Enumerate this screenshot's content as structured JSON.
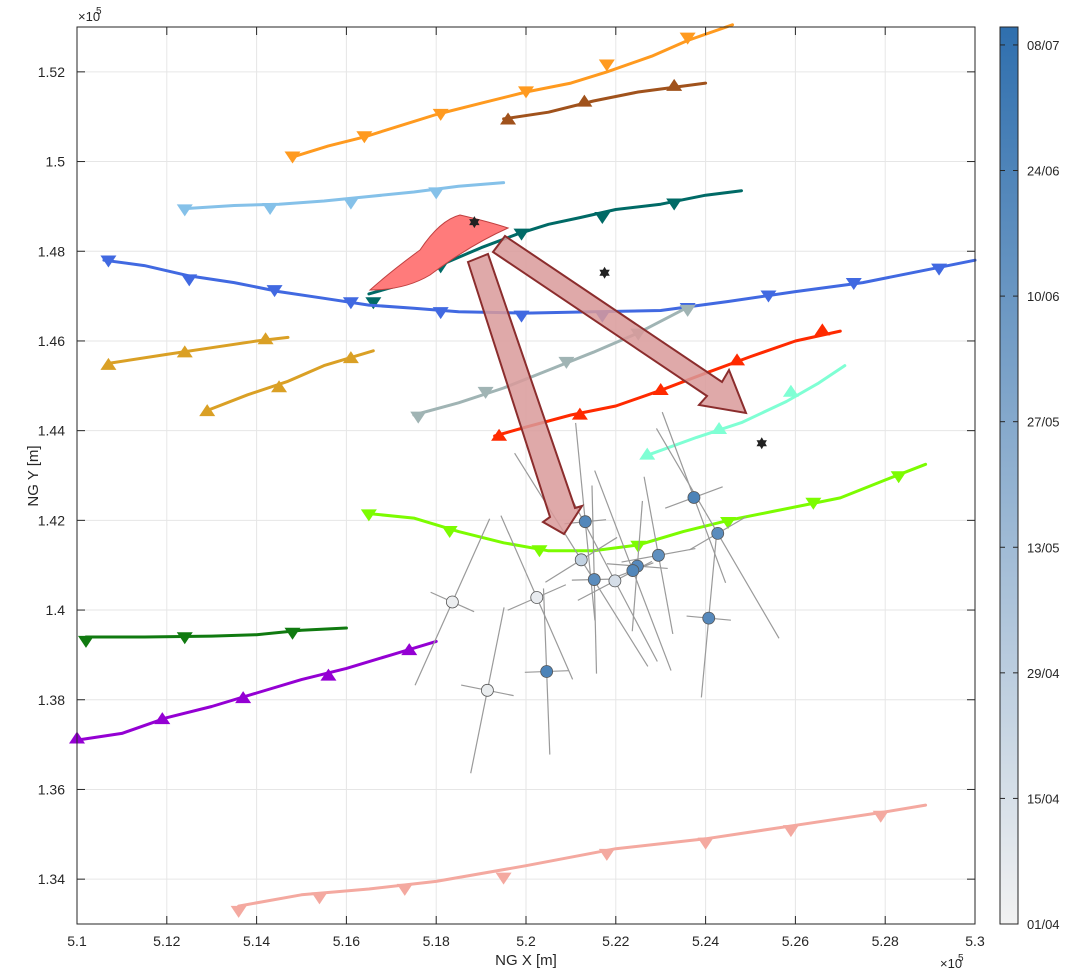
{
  "chart_data": {
    "type": "line",
    "xlabel": "NG X [m]",
    "ylabel": "NG Y [m]",
    "x_exponent_label": "×10",
    "y_exponent_label": "×10",
    "exponent_power": "5",
    "xlim": [
      5.1,
      5.3
    ],
    "ylim": [
      1.33,
      1.53
    ],
    "xticks": [
      "5.1",
      "5.12",
      "5.14",
      "5.16",
      "5.18",
      "5.2",
      "5.22",
      "5.24",
      "5.26",
      "5.28",
      "5.3"
    ],
    "yticks": [
      "1.34",
      "1.36",
      "1.38",
      "1.4",
      "1.42",
      "1.44",
      "1.46",
      "1.48",
      "1.5",
      "1.52"
    ],
    "grid": true,
    "series": [
      {
        "color": "#ff9a1f",
        "marker": "down",
        "points": [
          [
            5.148,
            1.501
          ],
          [
            5.156,
            1.5035
          ],
          [
            5.164,
            1.5055
          ],
          [
            5.172,
            1.508
          ],
          [
            5.18,
            1.5105
          ],
          [
            5.19,
            1.513
          ],
          [
            5.2,
            1.5155
          ],
          [
            5.21,
            1.5175
          ],
          [
            5.218,
            1.52
          ],
          [
            5.228,
            1.5235
          ],
          [
            5.236,
            1.527
          ],
          [
            5.246,
            1.5305
          ]
        ],
        "markers": [
          [
            5.148,
            1.501
          ],
          [
            5.164,
            1.5055
          ],
          [
            5.181,
            1.5105
          ],
          [
            5.2,
            1.5155
          ],
          [
            5.218,
            1.5215
          ],
          [
            5.236,
            1.5275
          ]
        ]
      },
      {
        "color": "#a0521c",
        "marker": "up",
        "points": [
          [
            5.195,
            1.5095
          ],
          [
            5.205,
            1.511
          ],
          [
            5.215,
            1.5135
          ],
          [
            5.225,
            1.5155
          ],
          [
            5.24,
            1.5175
          ]
        ],
        "markers": [
          [
            5.196,
            1.5095
          ],
          [
            5.213,
            1.5135
          ],
          [
            5.233,
            1.517
          ]
        ]
      },
      {
        "color": "#85c1e9",
        "marker": "down",
        "points": [
          [
            5.124,
            1.4895
          ],
          [
            5.135,
            1.4902
          ],
          [
            5.145,
            1.4905
          ],
          [
            5.155,
            1.4912
          ],
          [
            5.165,
            1.4922
          ],
          [
            5.175,
            1.4932
          ],
          [
            5.185,
            1.4945
          ],
          [
            5.195,
            1.4953
          ]
        ],
        "markers": [
          [
            5.124,
            1.4892
          ],
          [
            5.143,
            1.4895
          ],
          [
            5.161,
            1.4907
          ],
          [
            5.18,
            1.493
          ]
        ]
      },
      {
        "color": "#006a66",
        "marker": "down",
        "points": [
          [
            5.165,
            1.4705
          ],
          [
            5.172,
            1.4725
          ],
          [
            5.18,
            1.4765
          ],
          [
            5.19,
            1.4808
          ],
          [
            5.198,
            1.4838
          ],
          [
            5.205,
            1.486
          ],
          [
            5.212,
            1.4875
          ],
          [
            5.22,
            1.4893
          ],
          [
            5.23,
            1.4905
          ],
          [
            5.24,
            1.4925
          ],
          [
            5.248,
            1.4935
          ]
        ],
        "markers": [
          [
            5.166,
            1.4685
          ],
          [
            5.181,
            1.4765
          ],
          [
            5.199,
            1.4838
          ],
          [
            5.217,
            1.4875
          ],
          [
            5.233,
            1.4905
          ]
        ]
      },
      {
        "color": "#4169e1",
        "marker": "down",
        "points": [
          [
            5.106,
            1.478
          ],
          [
            5.115,
            1.4768
          ],
          [
            5.125,
            1.4745
          ],
          [
            5.135,
            1.473
          ],
          [
            5.145,
            1.471
          ],
          [
            5.155,
            1.4695
          ],
          [
            5.165,
            1.468
          ],
          [
            5.175,
            1.4673
          ],
          [
            5.185,
            1.4665
          ],
          [
            5.2,
            1.4662
          ],
          [
            5.215,
            1.4665
          ],
          [
            5.23,
            1.4668
          ],
          [
            5.245,
            1.4688
          ],
          [
            5.26,
            1.471
          ],
          [
            5.275,
            1.473
          ],
          [
            5.29,
            1.476
          ],
          [
            5.3,
            1.478
          ]
        ],
        "markers": [
          [
            5.107,
            1.4778
          ],
          [
            5.125,
            1.4736
          ],
          [
            5.144,
            1.4712
          ],
          [
            5.161,
            1.4685
          ],
          [
            5.181,
            1.4663
          ],
          [
            5.199,
            1.4655
          ],
          [
            5.217,
            1.4655
          ],
          [
            5.236,
            1.4672
          ],
          [
            5.254,
            1.47
          ],
          [
            5.273,
            1.4728
          ],
          [
            5.292,
            1.476
          ]
        ]
      },
      {
        "color": "#daa025",
        "marker": "up",
        "points": [
          [
            5.107,
            1.455
          ],
          [
            5.12,
            1.457
          ],
          [
            5.13,
            1.4585
          ],
          [
            5.14,
            1.46
          ],
          [
            5.147,
            1.4608
          ]
        ],
        "markers": [
          [
            5.107,
            1.4548
          ],
          [
            5.124,
            1.4576
          ],
          [
            5.142,
            1.4605
          ]
        ]
      },
      {
        "color": "#daa025",
        "marker": "up",
        "points": [
          [
            5.129,
            1.4445
          ],
          [
            5.138,
            1.448
          ],
          [
            5.147,
            1.451
          ],
          [
            5.155,
            1.4545
          ],
          [
            5.166,
            1.4578
          ]
        ],
        "markers": [
          [
            5.129,
            1.4445
          ],
          [
            5.145,
            1.4498
          ],
          [
            5.161,
            1.4563
          ]
        ]
      },
      {
        "color": "#a0b4b4",
        "marker": "down",
        "points": [
          [
            5.175,
            1.4435
          ],
          [
            5.185,
            1.4462
          ],
          [
            5.195,
            1.4495
          ],
          [
            5.205,
            1.4535
          ],
          [
            5.215,
            1.4575
          ],
          [
            5.225,
            1.4618
          ],
          [
            5.236,
            1.4675
          ]
        ],
        "markers": [
          [
            5.176,
            1.443
          ],
          [
            5.191,
            1.4485
          ],
          [
            5.209,
            1.4552
          ],
          [
            5.225,
            1.4615
          ],
          [
            5.236,
            1.4668
          ]
        ]
      },
      {
        "color": "#ff2a00",
        "marker": "up",
        "points": [
          [
            5.193,
            1.4388
          ],
          [
            5.2,
            1.4408
          ],
          [
            5.21,
            1.4435
          ],
          [
            5.22,
            1.4455
          ],
          [
            5.23,
            1.449
          ],
          [
            5.24,
            1.4528
          ],
          [
            5.25,
            1.4565
          ],
          [
            5.26,
            1.46
          ],
          [
            5.27,
            1.4622
          ]
        ],
        "markers": [
          [
            5.194,
            1.439
          ],
          [
            5.212,
            1.4437
          ],
          [
            5.23,
            1.4492
          ],
          [
            5.247,
            1.4558
          ],
          [
            5.266,
            1.4625
          ]
        ]
      },
      {
        "color": "#7fffd4",
        "marker": "up",
        "points": [
          [
            5.227,
            1.4345
          ],
          [
            5.238,
            1.4385
          ],
          [
            5.248,
            1.4418
          ],
          [
            5.258,
            1.4465
          ],
          [
            5.265,
            1.4505
          ],
          [
            5.271,
            1.4545
          ]
        ],
        "markers": [
          [
            5.227,
            1.4348
          ],
          [
            5.243,
            1.4405
          ],
          [
            5.259,
            1.4488
          ]
        ]
      },
      {
        "color": "#7cfc00",
        "marker": "down",
        "points": [
          [
            5.165,
            1.4215
          ],
          [
            5.175,
            1.4205
          ],
          [
            5.185,
            1.4175
          ],
          [
            5.195,
            1.415
          ],
          [
            5.205,
            1.4132
          ],
          [
            5.215,
            1.4132
          ],
          [
            5.225,
            1.4145
          ],
          [
            5.235,
            1.4175
          ],
          [
            5.245,
            1.42
          ],
          [
            5.255,
            1.422
          ],
          [
            5.27,
            1.425
          ],
          [
            5.28,
            1.429
          ],
          [
            5.289,
            1.4325
          ]
        ],
        "markers": [
          [
            5.165,
            1.4212
          ],
          [
            5.183,
            1.4175
          ],
          [
            5.203,
            1.4132
          ],
          [
            5.225,
            1.4142
          ],
          [
            5.245,
            1.4195
          ],
          [
            5.264,
            1.4238
          ],
          [
            5.283,
            1.4297
          ]
        ]
      },
      {
        "color": "#107a10",
        "marker": "down",
        "points": [
          [
            5.102,
            1.394
          ],
          [
            5.115,
            1.394
          ],
          [
            5.13,
            1.3942
          ],
          [
            5.14,
            1.3945
          ],
          [
            5.15,
            1.3955
          ],
          [
            5.16,
            1.396
          ]
        ],
        "markers": [
          [
            5.102,
            1.393
          ],
          [
            5.124,
            1.3938
          ],
          [
            5.148,
            1.3948
          ]
        ]
      },
      {
        "color": "#9400d3",
        "marker": "up",
        "points": [
          [
            5.1,
            1.371
          ],
          [
            5.11,
            1.3725
          ],
          [
            5.12,
            1.376
          ],
          [
            5.13,
            1.3785
          ],
          [
            5.14,
            1.3815
          ],
          [
            5.15,
            1.3845
          ],
          [
            5.16,
            1.387
          ],
          [
            5.17,
            1.39
          ],
          [
            5.18,
            1.393
          ]
        ],
        "markers": [
          [
            5.1,
            1.3715
          ],
          [
            5.119,
            1.3758
          ],
          [
            5.137,
            1.3805
          ],
          [
            5.156,
            1.3855
          ],
          [
            5.174,
            1.3912
          ]
        ]
      },
      {
        "color": "#f4a9a0",
        "marker": "down",
        "points": [
          [
            5.136,
            1.334
          ],
          [
            5.15,
            1.3365
          ],
          [
            5.165,
            1.3378
          ],
          [
            5.18,
            1.3395
          ],
          [
            5.2,
            1.343
          ],
          [
            5.22,
            1.3468
          ],
          [
            5.24,
            1.349
          ],
          [
            5.26,
            1.352
          ],
          [
            5.28,
            1.355
          ],
          [
            5.289,
            1.3565
          ]
        ],
        "markers": [
          [
            5.136,
            1.3328
          ],
          [
            5.154,
            1.3358
          ],
          [
            5.173,
            1.3377
          ],
          [
            5.195,
            1.3402
          ],
          [
            5.218,
            1.3455
          ],
          [
            5.24,
            1.348
          ],
          [
            5.259,
            1.3508
          ],
          [
            5.279,
            1.354
          ]
        ]
      }
    ],
    "stars": [
      [
        5.1885,
        1.4865
      ],
      [
        5.2175,
        1.4752
      ],
      [
        5.2525,
        1.4372
      ]
    ],
    "events": [
      {
        "x": 5.2132,
        "y": 1.4197,
        "date_level": 0.82
      },
      {
        "x": 5.2374,
        "y": 1.4251,
        "date_level": 0.85
      },
      {
        "x": 5.2427,
        "y": 1.4171,
        "date_level": 0.78
      },
      {
        "x": 5.2295,
        "y": 1.4122,
        "date_level": 0.75
      },
      {
        "x": 5.2248,
        "y": 1.4098,
        "date_level": 0.8
      },
      {
        "x": 5.2238,
        "y": 1.4088,
        "date_level": 0.82
      },
      {
        "x": 5.2152,
        "y": 1.4068,
        "date_level": 0.78
      },
      {
        "x": 5.2123,
        "y": 1.4112,
        "date_level": 0.25
      },
      {
        "x": 5.2198,
        "y": 1.4065,
        "date_level": 0.15
      },
      {
        "x": 5.2024,
        "y": 1.4028,
        "date_level": 0.05
      },
      {
        "x": 5.2407,
        "y": 1.3982,
        "date_level": 0.8
      },
      {
        "x": 5.1836,
        "y": 1.4018,
        "date_level": 0.03
      },
      {
        "x": 5.2046,
        "y": 1.3863,
        "date_level": 0.85
      },
      {
        "x": 5.1914,
        "y": 1.3821,
        "date_level": 0.04
      }
    ],
    "colorbar": {
      "cmap_from": "#f2f2f2",
      "cmap_to": "#2f6fae",
      "ticks": [
        "01/04",
        "15/04",
        "29/04",
        "13/05",
        "27/05",
        "10/06",
        "24/06",
        "08/07"
      ],
      "tick_levels": [
        0.0,
        0.14,
        0.28,
        0.42,
        0.56,
        0.7,
        0.84,
        0.98
      ]
    }
  }
}
